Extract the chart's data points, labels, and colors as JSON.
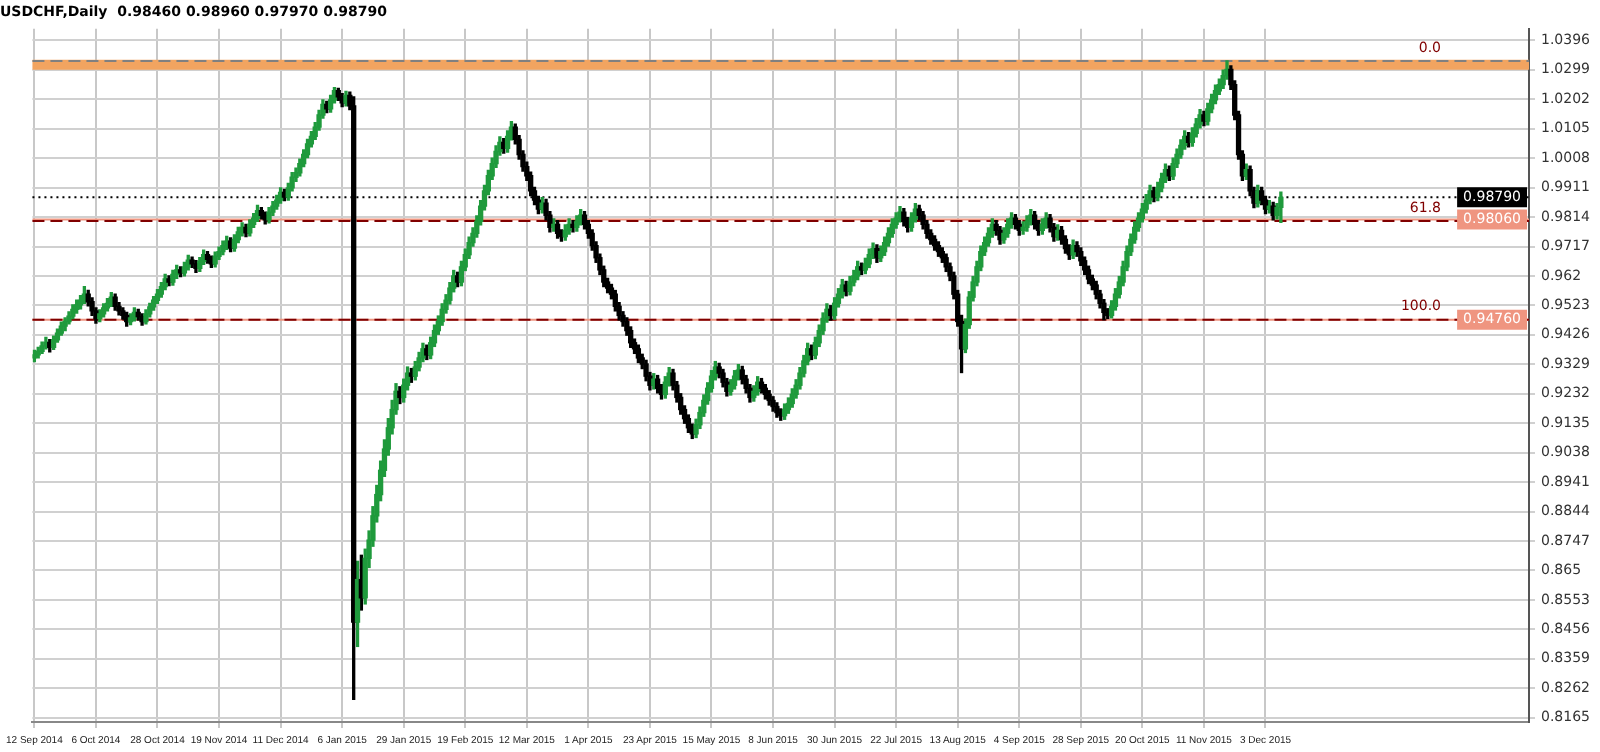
{
  "chart_data": {
    "type": "candlestick",
    "title": "USDCHF,Daily  0.98460 0.98960 0.97970 0.98790",
    "categories": [
      "12 Sep 2014",
      null,
      null,
      null,
      null,
      null,
      null,
      null,
      null,
      null,
      null,
      null,
      null,
      null,
      null,
      null,
      "6 Oct 2014",
      null,
      null,
      null,
      null,
      null,
      null,
      null,
      null,
      null,
      null,
      null,
      null,
      null,
      null,
      null,
      "28 Oct 2014",
      null,
      null,
      null,
      null,
      null,
      null,
      null,
      null,
      null,
      null,
      null,
      null,
      null,
      null,
      null,
      "19 Nov 2014",
      null,
      null,
      null,
      null,
      null,
      null,
      null,
      null,
      null,
      null,
      null,
      null,
      null,
      null,
      null,
      "11 Dec 2014",
      null,
      null,
      null,
      null,
      null,
      null,
      null,
      null,
      null,
      null,
      null,
      null,
      null,
      null,
      null,
      "6 Jan 2015",
      null,
      null,
      null,
      null,
      null,
      null,
      null,
      null,
      null,
      null,
      null,
      null,
      null,
      null,
      null,
      "29 Jan 2015",
      null,
      null,
      null,
      null,
      null,
      null,
      null,
      null,
      null,
      null,
      null,
      null,
      null,
      null,
      null,
      "19 Feb 2015",
      null,
      null,
      null,
      null,
      null,
      null,
      null,
      null,
      null,
      null,
      null,
      null,
      null,
      null,
      null,
      "12 Mar 2015",
      null,
      null,
      null,
      null,
      null,
      null,
      null,
      null,
      null,
      null,
      null,
      null,
      null,
      null,
      null,
      "1 Apr 2015",
      null,
      null,
      null,
      null,
      null,
      null,
      null,
      null,
      null,
      null,
      null,
      null,
      null,
      null,
      null,
      "23 Apr 2015",
      null,
      null,
      null,
      null,
      null,
      null,
      null,
      null,
      null,
      null,
      null,
      null,
      null,
      null,
      null,
      "15 May 2015",
      null,
      null,
      null,
      null,
      null,
      null,
      null,
      null,
      null,
      null,
      null,
      null,
      null,
      null,
      null,
      "8 Jun 2015",
      null,
      null,
      null,
      null,
      null,
      null,
      null,
      null,
      null,
      null,
      null,
      null,
      null,
      null,
      null,
      "30 Jun 2015",
      null,
      null,
      null,
      null,
      null,
      null,
      null,
      null,
      null,
      null,
      null,
      null,
      null,
      null,
      null,
      "22 Jul 2015",
      null,
      null,
      null,
      null,
      null,
      null,
      null,
      null,
      null,
      null,
      null,
      null,
      null,
      null,
      null,
      "13 Aug 2015",
      null,
      null,
      null,
      null,
      null,
      null,
      null,
      null,
      null,
      null,
      null,
      null,
      null,
      null,
      null,
      "4 Sep 2015",
      null,
      null,
      null,
      null,
      null,
      null,
      null,
      null,
      null,
      null,
      null,
      null,
      null,
      null,
      null,
      "28 Sep 2015",
      null,
      null,
      null,
      null,
      null,
      null,
      null,
      null,
      null,
      null,
      null,
      null,
      null,
      null,
      null,
      "20 Oct 2015",
      null,
      null,
      null,
      null,
      null,
      null,
      null,
      null,
      null,
      null,
      null,
      null,
      null,
      null,
      null,
      "11 Nov 2015",
      null,
      null,
      null,
      null,
      null,
      null,
      null,
      null,
      null,
      null,
      null,
      null,
      null,
      null,
      null,
      "3 Dec 2015",
      null,
      null,
      null,
      null,
      null,
      null,
      null,
      null,
      null,
      null,
      null,
      null,
      null,
      null,
      null,
      null,
      null,
      null,
      null,
      null,
      null,
      null,
      null,
      null,
      null,
      null,
      null,
      null,
      null,
      null,
      null,
      null,
      null,
      null,
      null,
      null,
      null,
      null,
      null,
      null,
      null,
      null,
      null,
      null,
      null,
      null,
      null,
      null,
      null,
      null,
      null,
      null,
      null,
      null,
      null,
      null,
      null,
      null,
      null,
      null,
      null,
      null,
      null,
      null,
      null,
      null,
      null,
      null
    ],
    "ohlc": [
      [
        0.935,
        0.9375,
        0.9338,
        0.936
      ],
      [
        0.936,
        0.9385,
        0.935,
        0.9372
      ],
      [
        0.9372,
        0.9402,
        0.9365,
        0.939
      ],
      [
        0.939,
        0.9418,
        0.938,
        0.9401
      ],
      [
        0.9401,
        0.941,
        0.937,
        0.9385
      ],
      [
        0.9385,
        0.9422,
        0.9378,
        0.941
      ],
      [
        0.941,
        0.9445,
        0.9402,
        0.9432
      ],
      [
        0.9432,
        0.9468,
        0.9425,
        0.9455
      ],
      [
        0.9455,
        0.9482,
        0.944,
        0.947
      ],
      [
        0.947,
        0.9502,
        0.9462,
        0.9488
      ],
      [
        0.9488,
        0.9525,
        0.948,
        0.951
      ],
      [
        0.951,
        0.954,
        0.9498,
        0.9525
      ],
      [
        0.9525,
        0.9555,
        0.9512,
        0.954
      ],
      [
        0.954,
        0.9585,
        0.953,
        0.956
      ],
      [
        0.956,
        0.9572,
        0.9522,
        0.9535
      ],
      [
        0.9535,
        0.9548,
        0.949,
        0.9505
      ],
      [
        0.9505,
        0.9515,
        0.9465,
        0.948
      ],
      [
        0.948,
        0.9508,
        0.947,
        0.9495
      ],
      [
        0.9495,
        0.9528,
        0.9485,
        0.9515
      ],
      [
        0.9515,
        0.9545,
        0.9505,
        0.953
      ],
      [
        0.953,
        0.9565,
        0.952,
        0.955
      ],
      [
        0.955,
        0.956,
        0.9508,
        0.952
      ],
      [
        0.952,
        0.9532,
        0.9492,
        0.9505
      ],
      [
        0.9505,
        0.9515,
        0.9478,
        0.949
      ],
      [
        0.949,
        0.95,
        0.9455,
        0.947
      ],
      [
        0.947,
        0.9495,
        0.946,
        0.9482
      ],
      [
        0.9482,
        0.9515,
        0.9472,
        0.95
      ],
      [
        0.95,
        0.951,
        0.9475,
        0.9486
      ],
      [
        0.9486,
        0.9495,
        0.9458,
        0.947
      ],
      [
        0.947,
        0.9508,
        0.9462,
        0.9495
      ],
      [
        0.9495,
        0.953,
        0.9485,
        0.9518
      ],
      [
        0.9518,
        0.9552,
        0.9508,
        0.954
      ],
      [
        0.954,
        0.9575,
        0.953,
        0.956
      ],
      [
        0.956,
        0.9598,
        0.955,
        0.9585
      ],
      [
        0.9585,
        0.9625,
        0.9575,
        0.961
      ],
      [
        0.961,
        0.962,
        0.9588,
        0.96
      ],
      [
        0.96,
        0.9638,
        0.959,
        0.9625
      ],
      [
        0.9625,
        0.9655,
        0.9612,
        0.964
      ],
      [
        0.964,
        0.965,
        0.9618,
        0.963
      ],
      [
        0.963,
        0.9665,
        0.962,
        0.965
      ],
      [
        0.965,
        0.9688,
        0.964,
        0.9672
      ],
      [
        0.9672,
        0.9682,
        0.9648,
        0.966
      ],
      [
        0.966,
        0.967,
        0.9632,
        0.9645
      ],
      [
        0.9645,
        0.968,
        0.9635,
        0.9668
      ],
      [
        0.9668,
        0.9705,
        0.9658,
        0.969
      ],
      [
        0.969,
        0.97,
        0.9662,
        0.9675
      ],
      [
        0.9675,
        0.9685,
        0.9648,
        0.966
      ],
      [
        0.966,
        0.9698,
        0.965,
        0.9685
      ],
      [
        0.9685,
        0.9715,
        0.9675,
        0.97
      ],
      [
        0.97,
        0.9735,
        0.969,
        0.972
      ],
      [
        0.972,
        0.975,
        0.9708,
        0.9735
      ],
      [
        0.9735,
        0.9745,
        0.97,
        0.9712
      ],
      [
        0.9712,
        0.9755,
        0.9702,
        0.974
      ],
      [
        0.974,
        0.978,
        0.973,
        0.9765
      ],
      [
        0.9765,
        0.9795,
        0.9752,
        0.978
      ],
      [
        0.978,
        0.979,
        0.975,
        0.9762
      ],
      [
        0.9762,
        0.9805,
        0.9752,
        0.979
      ],
      [
        0.979,
        0.9825,
        0.978,
        0.981
      ],
      [
        0.981,
        0.9852,
        0.98,
        0.9835
      ],
      [
        0.9835,
        0.9845,
        0.9808,
        0.982
      ],
      [
        0.982,
        0.983,
        0.9792,
        0.9805
      ],
      [
        0.9805,
        0.9845,
        0.9795,
        0.983
      ],
      [
        0.983,
        0.9865,
        0.982,
        0.985
      ],
      [
        0.985,
        0.9885,
        0.984,
        0.987
      ],
      [
        0.987,
        0.991,
        0.986,
        0.9895
      ],
      [
        0.9895,
        0.9905,
        0.9868,
        0.988
      ],
      [
        0.988,
        0.9925,
        0.987,
        0.991
      ],
      [
        0.991,
        0.996,
        0.99,
        0.9945
      ],
      [
        0.9945,
        0.9975,
        0.9932,
        0.996
      ],
      [
        0.996,
        1.0005,
        0.995,
        0.999
      ],
      [
        0.999,
        1.0035,
        0.998,
        1.002
      ],
      [
        1.002,
        1.007,
        1.001,
        1.0055
      ],
      [
        1.0055,
        1.0095,
        1.0045,
        1.008
      ],
      [
        1.008,
        1.0125,
        1.007,
        1.011
      ],
      [
        1.011,
        1.0165,
        1.01,
        1.015
      ],
      [
        1.015,
        1.02,
        1.014,
        1.0185
      ],
      [
        1.0185,
        1.0195,
        1.0158,
        1.017
      ],
      [
        1.017,
        1.0215,
        1.016,
        1.02
      ],
      [
        1.02,
        1.024,
        1.019,
        1.023
      ],
      [
        1.023,
        1.0238,
        1.0198,
        1.021
      ],
      [
        1.021,
        1.022,
        1.0178,
        1.019
      ],
      [
        1.019,
        1.0228,
        1.018,
        1.0215
      ],
      [
        1.0215,
        1.0225,
        1.0168,
        1.018
      ],
      [
        1.018,
        1.021,
        0.8226,
        0.848
      ],
      [
        0.848,
        0.868,
        0.84,
        0.862
      ],
      [
        0.862,
        0.87,
        0.852,
        0.856
      ],
      [
        0.856,
        0.872,
        0.854,
        0.869
      ],
      [
        0.869,
        0.878,
        0.866,
        0.875
      ],
      [
        0.875,
        0.886,
        0.873,
        0.883
      ],
      [
        0.883,
        0.893,
        0.881,
        0.89
      ],
      [
        0.89,
        0.901,
        0.888,
        0.898
      ],
      [
        0.898,
        0.908,
        0.896,
        0.905
      ],
      [
        0.905,
        0.915,
        0.903,
        0.912
      ],
      [
        0.912,
        0.921,
        0.91,
        0.918
      ],
      [
        0.918,
        0.9265,
        0.9165,
        0.924
      ],
      [
        0.924,
        0.9255,
        0.92,
        0.922
      ],
      [
        0.922,
        0.928,
        0.9205,
        0.926
      ],
      [
        0.926,
        0.932,
        0.9245,
        0.93
      ],
      [
        0.93,
        0.9315,
        0.927,
        0.929
      ],
      [
        0.929,
        0.9338,
        0.9278,
        0.932
      ],
      [
        0.932,
        0.9368,
        0.9308,
        0.935
      ],
      [
        0.935,
        0.9398,
        0.9338,
        0.938
      ],
      [
        0.938,
        0.9392,
        0.9345,
        0.936
      ],
      [
        0.936,
        0.9418,
        0.9348,
        0.94
      ],
      [
        0.94,
        0.9458,
        0.9388,
        0.944
      ],
      [
        0.944,
        0.9488,
        0.9428,
        0.947
      ],
      [
        0.947,
        0.9528,
        0.9458,
        0.951
      ],
      [
        0.951,
        0.9558,
        0.9498,
        0.954
      ],
      [
        0.954,
        0.9598,
        0.9528,
        0.958
      ],
      [
        0.958,
        0.9638,
        0.9568,
        0.962
      ],
      [
        0.962,
        0.9632,
        0.9585,
        0.96
      ],
      [
        0.96,
        0.9668,
        0.9588,
        0.965
      ],
      [
        0.965,
        0.9708,
        0.9638,
        0.969
      ],
      [
        0.969,
        0.9748,
        0.9678,
        0.973
      ],
      [
        0.973,
        0.9778,
        0.9718,
        0.976
      ],
      [
        0.976,
        0.9818,
        0.9748,
        0.98
      ],
      [
        0.98,
        0.9868,
        0.9788,
        0.985
      ],
      [
        0.985,
        0.9918,
        0.9838,
        0.99
      ],
      [
        0.99,
        0.9968,
        0.9888,
        0.995
      ],
      [
        0.995,
        1.0008,
        0.9938,
        0.999
      ],
      [
        0.999,
        1.0048,
        0.9978,
        1.003
      ],
      [
        1.003,
        1.0078,
        1.0018,
        1.006
      ],
      [
        1.006,
        1.0072,
        1.0025,
        1.004
      ],
      [
        1.004,
        1.0098,
        1.0028,
        1.008
      ],
      [
        1.008,
        1.0128,
        1.0068,
        1.011
      ],
      [
        1.011,
        1.012,
        1.0055,
        1.007
      ],
      [
        1.007,
        1.0082,
        1.0005,
        1.002
      ],
      [
        1.002,
        1.0032,
        0.9965,
        0.998
      ],
      [
        0.998,
        0.9995,
        0.9935,
        0.995
      ],
      [
        0.995,
        0.9962,
        0.9885,
        0.99
      ],
      [
        0.99,
        0.9912,
        0.9855,
        0.987
      ],
      [
        0.987,
        0.9882,
        0.9825,
        0.984
      ],
      [
        0.984,
        0.9878,
        0.9828,
        0.986
      ],
      [
        0.986,
        0.9872,
        0.9805,
        0.982
      ],
      [
        0.982,
        0.9832,
        0.9765,
        0.978
      ],
      [
        0.978,
        0.9808,
        0.9768,
        0.979
      ],
      [
        0.979,
        0.9802,
        0.9745,
        0.976
      ],
      [
        0.976,
        0.9772,
        0.9735,
        0.975
      ],
      [
        0.975,
        0.9788,
        0.9738,
        0.977
      ],
      [
        0.977,
        0.9808,
        0.9758,
        0.979
      ],
      [
        0.979,
        0.9802,
        0.9765,
        0.978
      ],
      [
        0.978,
        0.9818,
        0.9768,
        0.98
      ],
      [
        0.98,
        0.9838,
        0.9788,
        0.982
      ],
      [
        0.982,
        0.9832,
        0.9775,
        0.979
      ],
      [
        0.979,
        0.9802,
        0.9745,
        0.976
      ],
      [
        0.976,
        0.9772,
        0.9705,
        0.972
      ],
      [
        0.972,
        0.9732,
        0.9665,
        0.968
      ],
      [
        0.968,
        0.9692,
        0.9625,
        0.964
      ],
      [
        0.964,
        0.9652,
        0.9585,
        0.96
      ],
      [
        0.96,
        0.9612,
        0.9565,
        0.958
      ],
      [
        0.958,
        0.9592,
        0.9545,
        0.956
      ],
      [
        0.956,
        0.9572,
        0.9505,
        0.952
      ],
      [
        0.952,
        0.9532,
        0.9475,
        0.949
      ],
      [
        0.949,
        0.9502,
        0.9455,
        0.947
      ],
      [
        0.947,
        0.9482,
        0.9425,
        0.944
      ],
      [
        0.944,
        0.9452,
        0.9385,
        0.94
      ],
      [
        0.94,
        0.9412,
        0.9365,
        0.938
      ],
      [
        0.938,
        0.9392,
        0.9335,
        0.935
      ],
      [
        0.935,
        0.9362,
        0.9315,
        0.933
      ],
      [
        0.933,
        0.9342,
        0.9275,
        0.929
      ],
      [
        0.929,
        0.9302,
        0.9245,
        0.926
      ],
      [
        0.926,
        0.9298,
        0.9248,
        0.928
      ],
      [
        0.928,
        0.9292,
        0.9235,
        0.925
      ],
      [
        0.925,
        0.9262,
        0.9215,
        0.923
      ],
      [
        0.923,
        0.9288,
        0.9218,
        0.927
      ],
      [
        0.927,
        0.9318,
        0.9258,
        0.93
      ],
      [
        0.93,
        0.9312,
        0.9245,
        0.926
      ],
      [
        0.926,
        0.9272,
        0.9205,
        0.922
      ],
      [
        0.922,
        0.9232,
        0.9165,
        0.918
      ],
      [
        0.918,
        0.9192,
        0.9135,
        0.915
      ],
      [
        0.915,
        0.9162,
        0.9105,
        0.912
      ],
      [
        0.912,
        0.9132,
        0.9085,
        0.91
      ],
      [
        0.91,
        0.9148,
        0.9088,
        0.913
      ],
      [
        0.913,
        0.9188,
        0.9118,
        0.917
      ],
      [
        0.917,
        0.9228,
        0.9158,
        0.921
      ],
      [
        0.921,
        0.9268,
        0.9198,
        0.925
      ],
      [
        0.925,
        0.9308,
        0.9238,
        0.929
      ],
      [
        0.929,
        0.9338,
        0.9278,
        0.932
      ],
      [
        0.932,
        0.9332,
        0.9285,
        0.93
      ],
      [
        0.93,
        0.9312,
        0.9255,
        0.927
      ],
      [
        0.927,
        0.9282,
        0.9225,
        0.924
      ],
      [
        0.924,
        0.9278,
        0.9228,
        0.926
      ],
      [
        0.926,
        0.9308,
        0.9248,
        0.929
      ],
      [
        0.929,
        0.9328,
        0.9278,
        0.931
      ],
      [
        0.931,
        0.9322,
        0.9265,
        0.928
      ],
      [
        0.928,
        0.9292,
        0.9235,
        0.925
      ],
      [
        0.925,
        0.9262,
        0.9205,
        0.922
      ],
      [
        0.922,
        0.9258,
        0.9208,
        0.924
      ],
      [
        0.924,
        0.9288,
        0.9228,
        0.927
      ],
      [
        0.927,
        0.9282,
        0.9235,
        0.925
      ],
      [
        0.925,
        0.9262,
        0.9215,
        0.923
      ],
      [
        0.923,
        0.9242,
        0.9195,
        0.921
      ],
      [
        0.921,
        0.9222,
        0.9175,
        0.919
      ],
      [
        0.919,
        0.9202,
        0.9155,
        0.917
      ],
      [
        0.917,
        0.9182,
        0.9145,
        0.916
      ],
      [
        0.916,
        0.9198,
        0.9148,
        0.918
      ],
      [
        0.918,
        0.9218,
        0.9168,
        0.92
      ],
      [
        0.92,
        0.9248,
        0.9188,
        0.923
      ],
      [
        0.923,
        0.9278,
        0.9218,
        0.926
      ],
      [
        0.926,
        0.9318,
        0.9248,
        0.93
      ],
      [
        0.93,
        0.9358,
        0.9288,
        0.934
      ],
      [
        0.934,
        0.9398,
        0.9328,
        0.938
      ],
      [
        0.938,
        0.9392,
        0.9345,
        0.936
      ],
      [
        0.936,
        0.9418,
        0.9348,
        0.94
      ],
      [
        0.94,
        0.9458,
        0.9388,
        0.944
      ],
      [
        0.944,
        0.9498,
        0.9428,
        0.948
      ],
      [
        0.948,
        0.9528,
        0.9468,
        0.951
      ],
      [
        0.951,
        0.9522,
        0.9475,
        0.949
      ],
      [
        0.949,
        0.9548,
        0.9478,
        0.953
      ],
      [
        0.953,
        0.9578,
        0.9518,
        0.956
      ],
      [
        0.956,
        0.9608,
        0.9548,
        0.959
      ],
      [
        0.959,
        0.9602,
        0.9555,
        0.957
      ],
      [
        0.957,
        0.9618,
        0.9558,
        0.96
      ],
      [
        0.96,
        0.9638,
        0.9588,
        0.962
      ],
      [
        0.962,
        0.9668,
        0.9608,
        0.965
      ],
      [
        0.965,
        0.9662,
        0.9625,
        0.964
      ],
      [
        0.964,
        0.9678,
        0.9628,
        0.966
      ],
      [
        0.966,
        0.9708,
        0.9648,
        0.969
      ],
      [
        0.969,
        0.9728,
        0.9678,
        0.971
      ],
      [
        0.971,
        0.9722,
        0.9665,
        0.968
      ],
      [
        0.968,
        0.9718,
        0.9668,
        0.97
      ],
      [
        0.97,
        0.9748,
        0.9688,
        0.973
      ],
      [
        0.973,
        0.9778,
        0.9718,
        0.976
      ],
      [
        0.976,
        0.9808,
        0.9748,
        0.979
      ],
      [
        0.979,
        0.9828,
        0.9778,
        0.981
      ],
      [
        0.981,
        0.9848,
        0.9798,
        0.983
      ],
      [
        0.983,
        0.9842,
        0.9785,
        0.98
      ],
      [
        0.98,
        0.9812,
        0.9765,
        0.978
      ],
      [
        0.978,
        0.9828,
        0.9768,
        0.981
      ],
      [
        0.981,
        0.9858,
        0.9798,
        0.984
      ],
      [
        0.984,
        0.9852,
        0.9805,
        0.982
      ],
      [
        0.982,
        0.9832,
        0.9775,
        0.979
      ],
      [
        0.979,
        0.9802,
        0.9745,
        0.976
      ],
      [
        0.976,
        0.9772,
        0.9725,
        0.974
      ],
      [
        0.974,
        0.9752,
        0.9705,
        0.972
      ],
      [
        0.972,
        0.9732,
        0.9685,
        0.97
      ],
      [
        0.97,
        0.9712,
        0.9665,
        0.968
      ],
      [
        0.968,
        0.9692,
        0.9635,
        0.965
      ],
      [
        0.965,
        0.9662,
        0.9605,
        0.962
      ],
      [
        0.962,
        0.9632,
        0.9545,
        0.956
      ],
      [
        0.956,
        0.9572,
        0.9455,
        0.947
      ],
      [
        0.947,
        0.949,
        0.9302,
        0.938
      ],
      [
        0.938,
        0.9478,
        0.9368,
        0.946
      ],
      [
        0.946,
        0.9568,
        0.9448,
        0.955
      ],
      [
        0.955,
        0.9618,
        0.9538,
        0.96
      ],
      [
        0.96,
        0.9668,
        0.9588,
        0.965
      ],
      [
        0.965,
        0.9718,
        0.9638,
        0.97
      ],
      [
        0.97,
        0.9748,
        0.9688,
        0.973
      ],
      [
        0.973,
        0.9778,
        0.9718,
        0.976
      ],
      [
        0.976,
        0.9808,
        0.9748,
        0.979
      ],
      [
        0.979,
        0.9802,
        0.9755,
        0.977
      ],
      [
        0.977,
        0.9782,
        0.9725,
        0.974
      ],
      [
        0.974,
        0.9778,
        0.9728,
        0.976
      ],
      [
        0.976,
        0.9808,
        0.9748,
        0.979
      ],
      [
        0.979,
        0.9828,
        0.9778,
        0.981
      ],
      [
        0.981,
        0.9822,
        0.9775,
        0.979
      ],
      [
        0.979,
        0.9802,
        0.9755,
        0.977
      ],
      [
        0.977,
        0.9798,
        0.9758,
        0.978
      ],
      [
        0.978,
        0.9818,
        0.9768,
        0.98
      ],
      [
        0.98,
        0.9838,
        0.9788,
        0.982
      ],
      [
        0.982,
        0.9832,
        0.9775,
        0.979
      ],
      [
        0.979,
        0.9802,
        0.9755,
        0.977
      ],
      [
        0.977,
        0.9808,
        0.9758,
        0.979
      ],
      [
        0.979,
        0.9828,
        0.9778,
        0.981
      ],
      [
        0.981,
        0.9822,
        0.9765,
        0.978
      ],
      [
        0.978,
        0.9792,
        0.9735,
        0.975
      ],
      [
        0.975,
        0.9788,
        0.9738,
        0.977
      ],
      [
        0.977,
        0.9782,
        0.9725,
        0.974
      ],
      [
        0.974,
        0.9752,
        0.9695,
        0.971
      ],
      [
        0.971,
        0.9722,
        0.9675,
        0.969
      ],
      [
        0.969,
        0.9738,
        0.9678,
        0.972
      ],
      [
        0.972,
        0.9732,
        0.9685,
        0.97
      ],
      [
        0.97,
        0.9712,
        0.9655,
        0.967
      ],
      [
        0.967,
        0.9682,
        0.9625,
        0.964
      ],
      [
        0.964,
        0.9652,
        0.9595,
        0.961
      ],
      [
        0.961,
        0.9622,
        0.9575,
        0.959
      ],
      [
        0.959,
        0.9602,
        0.9545,
        0.956
      ],
      [
        0.956,
        0.9572,
        0.9515,
        0.953
      ],
      [
        0.953,
        0.9542,
        0.9476,
        0.95
      ],
      [
        0.95,
        0.9512,
        0.948,
        0.949
      ],
      [
        0.949,
        0.9538,
        0.9482,
        0.952
      ],
      [
        0.952,
        0.9578,
        0.9508,
        0.956
      ],
      [
        0.956,
        0.9618,
        0.9548,
        0.96
      ],
      [
        0.96,
        0.9668,
        0.9588,
        0.965
      ],
      [
        0.965,
        0.9718,
        0.9638,
        0.97
      ],
      [
        0.97,
        0.9758,
        0.9688,
        0.974
      ],
      [
        0.974,
        0.9798,
        0.9728,
        0.978
      ],
      [
        0.978,
        0.9828,
        0.9768,
        0.981
      ],
      [
        0.981,
        0.9858,
        0.9798,
        0.984
      ],
      [
        0.984,
        0.9888,
        0.9828,
        0.987
      ],
      [
        0.987,
        0.9918,
        0.9858,
        0.99
      ],
      [
        0.99,
        0.9912,
        0.9865,
        0.988
      ],
      [
        0.988,
        0.9928,
        0.9868,
        0.991
      ],
      [
        0.991,
        0.9958,
        0.9898,
        0.994
      ],
      [
        0.994,
        0.9988,
        0.9928,
        0.997
      ],
      [
        0.997,
        0.9982,
        0.9935,
        0.995
      ],
      [
        0.995,
        1.0008,
        0.9938,
        0.999
      ],
      [
        0.999,
        1.0038,
        0.9978,
        1.002
      ],
      [
        1.002,
        1.0068,
        1.0008,
        1.005
      ],
      [
        1.005,
        1.0098,
        1.0038,
        1.008
      ],
      [
        1.008,
        1.0092,
        1.0045,
        1.006
      ],
      [
        1.006,
        1.0108,
        1.0048,
        1.009
      ],
      [
        1.009,
        1.0138,
        1.0078,
        1.012
      ],
      [
        1.012,
        1.0168,
        1.0108,
        1.015
      ],
      [
        1.015,
        1.0162,
        1.0115,
        1.013
      ],
      [
        1.013,
        1.0188,
        1.0118,
        1.017
      ],
      [
        1.017,
        1.0218,
        1.0158,
        1.02
      ],
      [
        1.02,
        1.0248,
        1.0188,
        1.023
      ],
      [
        1.023,
        1.0268,
        1.0218,
        1.025
      ],
      [
        1.025,
        1.0298,
        1.0238,
        1.028
      ],
      [
        1.028,
        1.0328,
        1.0268,
        1.03
      ],
      [
        1.03,
        1.0312,
        1.0235,
        1.025
      ],
      [
        1.025,
        1.0262,
        1.0135,
        1.015
      ],
      [
        1.015,
        1.0162,
        1.0005,
        1.002
      ],
      [
        1.002,
        1.0032,
        0.9935,
        0.995
      ],
      [
        0.995,
        0.9988,
        0.9938,
        0.997
      ],
      [
        0.997,
        0.9982,
        0.9885,
        0.99
      ],
      [
        0.99,
        0.9912,
        0.9845,
        0.986
      ],
      [
        0.986,
        0.9918,
        0.9848,
        0.99
      ],
      [
        0.99,
        0.9912,
        0.9855,
        0.987
      ],
      [
        0.987,
        0.9882,
        0.9825,
        0.984
      ],
      [
        0.984,
        0.9868,
        0.9828,
        0.985
      ],
      [
        0.985,
        0.9862,
        0.9805,
        0.982
      ],
      [
        0.982,
        0.9858,
        0.9808,
        0.9846
      ],
      [
        0.9846,
        0.9896,
        0.9797,
        0.9879
      ],
      null,
      null,
      null,
      null,
      null,
      null,
      null,
      null,
      null,
      null,
      null,
      null,
      null,
      null,
      null,
      null,
      null,
      null,
      null,
      null,
      null,
      null,
      null,
      null,
      null,
      null,
      null,
      null,
      null,
      null,
      null,
      null,
      null,
      null,
      null,
      null,
      null,
      null,
      null,
      null,
      null,
      null,
      null,
      null,
      null,
      null,
      null,
      null,
      null,
      null,
      null,
      null,
      null,
      null,
      null,
      null,
      null,
      null,
      null,
      null,
      null,
      null,
      null,
      null
    ],
    "ylim": [
      0.8151,
      1.0434
    ],
    "yticks": [
      1.0396,
      1.0299,
      1.0202,
      1.0105,
      1.0008,
      0.9911,
      0.9814,
      0.9717,
      0.962,
      0.9523,
      0.9426,
      0.9329,
      0.9232,
      0.9135,
      0.9038,
      0.8941,
      0.8844,
      0.8747,
      0.865,
      0.8553,
      0.8456,
      0.8359,
      0.8262,
      0.8165
    ],
    "grid": true,
    "ref_lines": [
      {
        "axis": "y",
        "value": 1.0316,
        "color": "#f2a460",
        "line_style": "solid"
      },
      {
        "axis": "y",
        "value": 0.9806,
        "color": "#ef9580",
        "line_style": "solid",
        "label": "0.98060"
      },
      {
        "axis": "y",
        "value": 0.9476,
        "color": "#ef9580",
        "line_style": "solid",
        "label": "0.94760"
      },
      {
        "axis": "y",
        "value": 0.9879,
        "color": "#000000",
        "line_style": "dotted",
        "label": "0.98790"
      },
      {
        "axis": "y",
        "value": 1.0328,
        "color": "#808080",
        "line_style": "dashed"
      },
      {
        "axis": "y",
        "value": 0.9801,
        "color": "#800000",
        "line_style": "dashed"
      },
      {
        "axis": "y",
        "value": 0.9476,
        "color": "#800000",
        "line_style": "dashed"
      }
    ],
    "annotations": [
      {
        "text": "0.0",
        "y": 1.0328
      },
      {
        "text": "61.8",
        "y": 0.9801
      },
      {
        "text": "100.0",
        "y": 0.9476
      }
    ]
  }
}
